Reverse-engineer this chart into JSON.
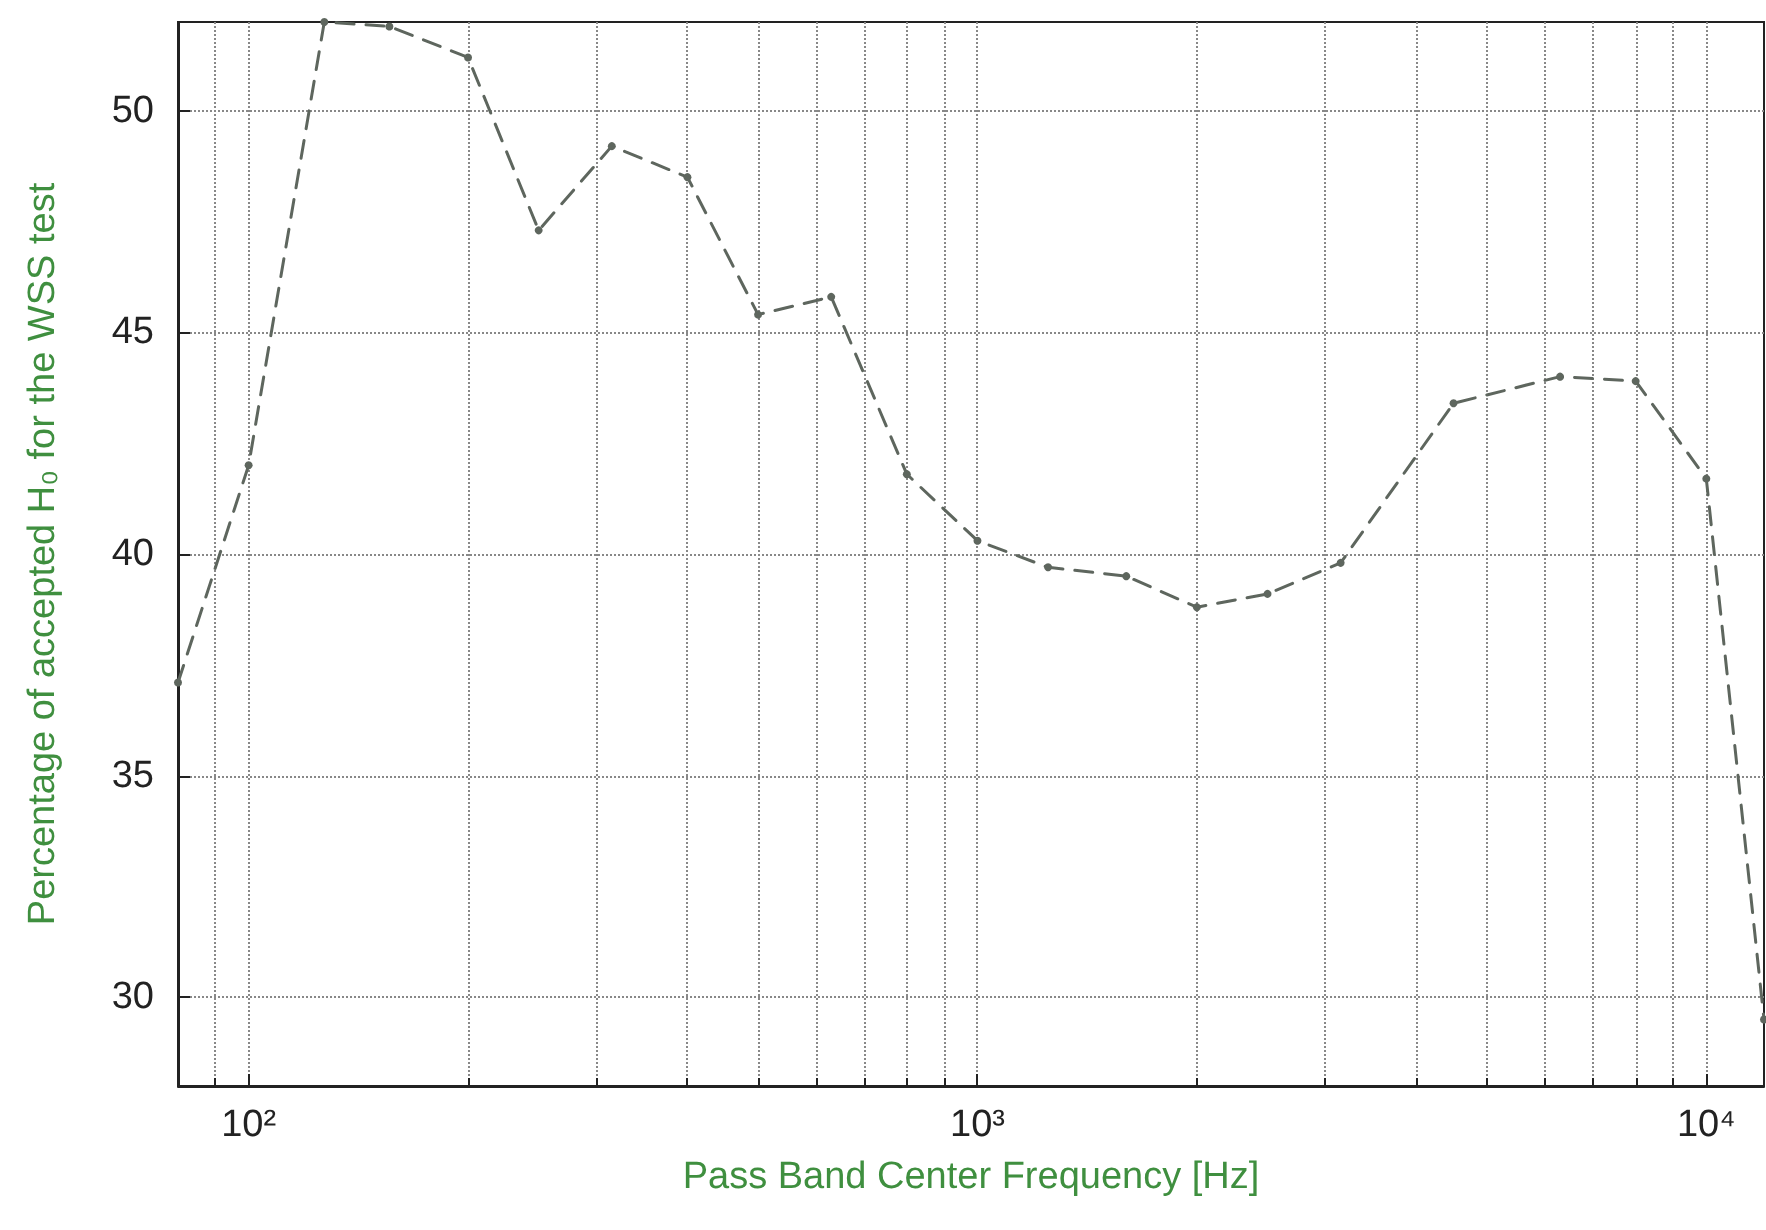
{
  "chart_data": {
    "type": "line",
    "xlabel": "Pass Band Center Frequency [Hz]",
    "ylabel": "Percentage of accepted H₀ for the WSS test",
    "log": "x",
    "grid": true,
    "marker": "circle",
    "line_style": "dashed",
    "xlim": [
      80,
      12000
    ],
    "ylim": [
      28,
      52
    ],
    "xticks": [
      {
        "value": 100,
        "label": "10²"
      },
      {
        "value": 1000,
        "label": "10³"
      },
      {
        "value": 10000,
        "label": "10⁴"
      }
    ],
    "yticks": [
      30,
      35,
      40,
      45,
      50
    ],
    "x": [
      80,
      100,
      127,
      156,
      200,
      250,
      315,
      400,
      500,
      630,
      800,
      1000,
      1250,
      1600,
      2000,
      2500,
      3150,
      4500,
      6300,
      8000,
      10000,
      12000
    ],
    "series": [
      {
        "color": "#5e665e",
        "values": [
          37.1,
          42.0,
          52.0,
          51.9,
          51.2,
          47.3,
          49.2,
          48.5,
          45.4,
          45.8,
          41.8,
          40.3,
          39.7,
          39.5,
          38.8,
          39.1,
          39.8,
          43.4,
          44.0,
          43.9,
          41.7,
          29.5
        ]
      }
    ]
  }
}
